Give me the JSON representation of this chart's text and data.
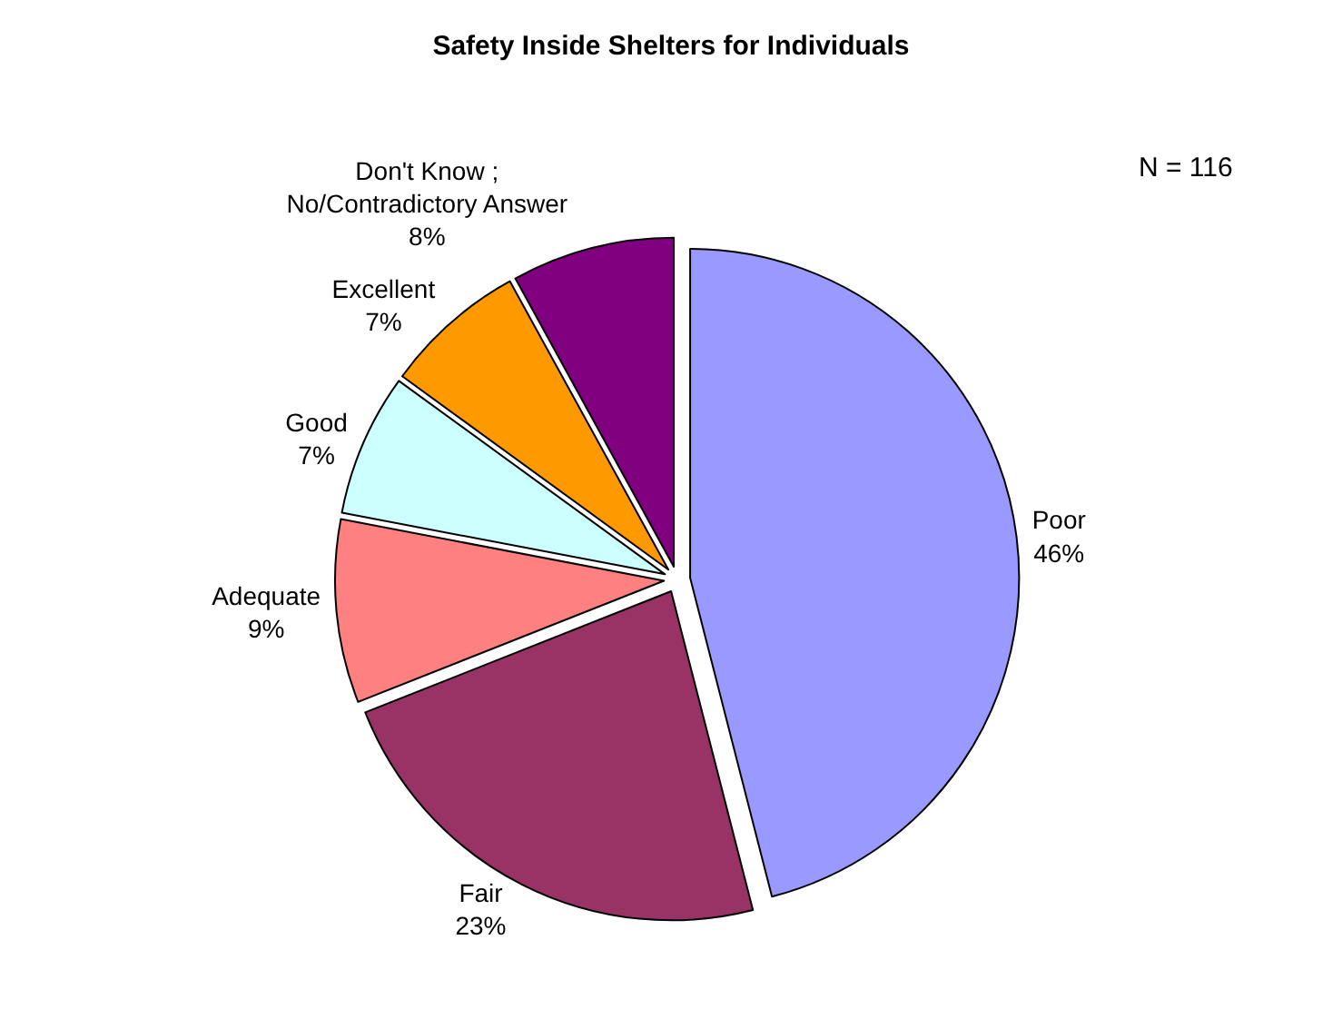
{
  "chart_data": {
    "type": "pie",
    "title": "Safety Inside Shelters for Individuals",
    "categories": [
      "Poor",
      "Fair",
      "Adequate",
      "Good",
      "Excellent",
      "Don't Know ;\nNo/Contradictory Answer"
    ],
    "values": [
      46,
      23,
      9,
      7,
      7,
      8
    ],
    "value_labels": [
      "46%",
      "23%",
      "9%",
      "7%",
      "7%",
      "8%"
    ],
    "colors": [
      "#9999ff",
      "#993366",
      "#ff8080",
      "#ccffff",
      "#ff9900",
      "#800080"
    ],
    "annotations": [
      "N = 116"
    ],
    "legend": false
  }
}
